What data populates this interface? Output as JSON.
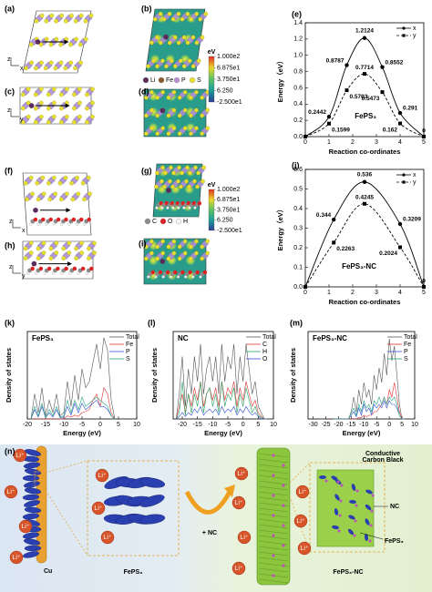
{
  "panel_labels": [
    "(a)",
    "(b)",
    "(c)",
    "(d)",
    "(e)",
    "(f)",
    "(g)",
    "(h)",
    "(i)",
    "(j)",
    "(k)",
    "(l)",
    "(m)",
    "(n)"
  ],
  "structure_axes": [
    [
      "z",
      "x"
    ],
    [
      "z",
      "y"
    ],
    [
      "z",
      "x"
    ],
    [
      "z",
      "y"
    ]
  ],
  "colorbar": {
    "unit": "eV",
    "clim": [
      -25,
      100
    ],
    "colors": [
      "#2a3d8f",
      "#1f9c9c",
      "#5cc06a",
      "#e8d82a",
      "#e03020"
    ],
    "ticks": [
      {
        "value": 100,
        "label": "1.000e2"
      },
      {
        "value": 68.75,
        "label": "6.875e1"
      },
      {
        "value": 37.5,
        "label": "3.750e1"
      },
      {
        "value": 6.25,
        "label": "6.250"
      },
      {
        "value": -25,
        "label": "-2.500e1"
      }
    ]
  },
  "atom_legends": [
    {
      "names": [
        "Li",
        "Fe",
        "P",
        "S"
      ],
      "colors": [
        "#5a2a5a",
        "#8b5a2b",
        "#b98fd1",
        "#e8e030"
      ]
    },
    {
      "names": [
        "C",
        "O",
        "H"
      ],
      "colors": [
        "#8a8a8a",
        "#e02020",
        "#f4f4f4"
      ]
    }
  ],
  "chart_data": [
    {
      "type": "line",
      "smooth": true,
      "annotation": "FePS₃",
      "xlabel": "Reaction co-ordinates",
      "ylabel": "Energy（eV）",
      "x": [
        0,
        1,
        1.75,
        2.5,
        3.25,
        4,
        5
      ],
      "series": [
        {
          "name": "x",
          "color": "#000000",
          "marker": "circle",
          "dash": false,
          "values": [
            0,
            0.2442,
            0.8787,
            1.2124,
            0.8552,
            0.291,
            0
          ],
          "value_labels": [
            null,
            "0.2442",
            "0.8787",
            "1.2124",
            "0.8552",
            "0.291",
            "0"
          ]
        },
        {
          "name": "y",
          "color": "#000000",
          "marker": "square",
          "dash": true,
          "values": [
            0,
            0.1599,
            0.5703,
            0.7714,
            0.5473,
            0.162,
            0
          ],
          "value_labels": [
            null,
            "0.1599",
            "0.5703",
            "0.7714",
            "0.5473",
            "0.162",
            null
          ]
        }
      ],
      "xlim": [
        0,
        5
      ],
      "ylim": [
        0,
        1.4
      ],
      "xticks": [
        0,
        1,
        2,
        3,
        4,
        5
      ],
      "yticks": [
        {
          "value": 0,
          "label": "0.0"
        },
        {
          "value": 0.2,
          "label": "0.2"
        },
        {
          "value": 0.4,
          "label": "0.4"
        },
        {
          "value": 0.6,
          "label": "0.6"
        },
        {
          "value": 0.8,
          "label": "0.8"
        },
        {
          "value": 1,
          "label": "1.0"
        },
        {
          "value": 1.2,
          "label": "1.2"
        },
        {
          "value": 1.4,
          "label": "1.4"
        }
      ],
      "legend": "upper right"
    },
    {
      "type": "line",
      "smooth": true,
      "annotation": "FePS₃-NC",
      "xlabel": "Reaction co-ordinates",
      "ylabel": "Energy（eV）",
      "x": [
        0,
        1.2,
        2.5,
        4,
        5
      ],
      "series": [
        {
          "name": "x",
          "color": "#000000",
          "marker": "circle",
          "dash": false,
          "values": [
            0,
            0.344,
            0.536,
            0.3209,
            0
          ],
          "value_labels": [
            null,
            "0.344",
            "0.536",
            "0.3209",
            "0"
          ]
        },
        {
          "name": "y",
          "color": "#000000",
          "marker": "square",
          "dash": true,
          "values": [
            0,
            0.2263,
            0.4245,
            0.2024,
            0
          ],
          "value_labels": [
            null,
            "0.2263",
            "0.4245",
            "0.2024",
            null
          ]
        }
      ],
      "xlim": [
        0,
        5
      ],
      "ylim": [
        0,
        0.6
      ],
      "xticks": [
        0,
        1,
        2,
        3,
        4,
        5
      ],
      "yticks": [
        {
          "value": 0,
          "label": "0.0"
        },
        {
          "value": 0.1,
          "label": "0.1"
        },
        {
          "value": 0.2,
          "label": "0.2"
        },
        {
          "value": 0.3,
          "label": "0.3"
        },
        {
          "value": 0.4,
          "label": "0.4"
        },
        {
          "value": 0.5,
          "label": "0.5"
        },
        {
          "value": 0.6,
          "label": "0.6"
        }
      ],
      "legend": "upper right"
    },
    {
      "type": "line",
      "annotation": "FePS₃",
      "xlabel": "Energy (eV)",
      "ylabel": "Density of states",
      "x": [
        -19,
        -18,
        -17,
        -16,
        -15,
        -14,
        -13,
        -12,
        -11,
        -10,
        -9,
        -8,
        -7,
        -6,
        -5,
        -4,
        -3,
        -2,
        -1,
        0,
        1,
        2,
        3,
        4
      ],
      "series": [
        {
          "name": "Total",
          "color": "#555555",
          "values": [
            0,
            4,
            1,
            5,
            0.5,
            3,
            1,
            4,
            0.5,
            1,
            6,
            2,
            7,
            3,
            8,
            5,
            6,
            9,
            12,
            8,
            13,
            11,
            3,
            0
          ]
        },
        {
          "name": "Fe",
          "color": "#e03030",
          "values": [
            0,
            0,
            0,
            0,
            0,
            0,
            0,
            0,
            0,
            0,
            0.5,
            0.3,
            0.6,
            0.4,
            1,
            1.2,
            1.5,
            3,
            4,
            2,
            5,
            4,
            1,
            0
          ]
        },
        {
          "name": "P",
          "color": "#3050d0",
          "values": [
            0,
            1.5,
            0.3,
            2,
            0.2,
            1,
            0.3,
            1.5,
            0.2,
            0.3,
            2,
            0.6,
            2.5,
            1,
            2.5,
            1.5,
            2,
            2.5,
            3,
            2,
            2,
            1.5,
            0.5,
            0
          ]
        },
        {
          "name": "S",
          "color": "#20a080",
          "values": [
            0,
            2,
            0.5,
            2.5,
            0.2,
            1.5,
            0.5,
            2,
            0.3,
            0.5,
            3,
            1,
            3,
            1.5,
            3.5,
            2,
            2.5,
            3,
            3.5,
            3,
            2.5,
            2,
            0.5,
            0
          ]
        }
      ],
      "xlim": [
        -20,
        10
      ],
      "ylim": [
        0,
        14
      ],
      "xticks": [
        -20,
        -15,
        -10,
        -5,
        0,
        5,
        10
      ],
      "legend": "upper right"
    },
    {
      "type": "line",
      "annotation": "NC",
      "xlabel": "Energy (eV)",
      "ylabel": "Density of states",
      "x": [
        -22,
        -21,
        -20,
        -19,
        -18,
        -17,
        -16,
        -15,
        -14,
        -13,
        -12,
        -11,
        -10,
        -9,
        -8,
        -7,
        -6,
        -5,
        -4,
        -3,
        -2,
        -1,
        0,
        1,
        2,
        3,
        4,
        5,
        6,
        7,
        8
      ],
      "series": [
        {
          "name": "Total",
          "color": "#555555",
          "values": [
            0,
            2,
            5,
            1,
            4,
            2,
            5,
            3,
            6,
            2,
            4,
            5,
            3,
            5,
            2,
            6,
            3,
            5,
            4,
            6,
            2,
            5,
            3,
            6,
            4,
            2,
            3,
            1,
            0.5,
            0,
            0
          ]
        },
        {
          "name": "C",
          "color": "#e03030",
          "values": [
            0,
            1,
            2,
            0.5,
            2,
            1,
            2.5,
            1.5,
            3,
            1,
            2,
            2.5,
            1.5,
            2.5,
            1,
            3,
            1.5,
            2.5,
            2,
            3,
            1,
            2.5,
            1.5,
            3,
            2,
            1,
            1.5,
            0.5,
            0.2,
            0,
            0
          ]
        },
        {
          "name": "H",
          "color": "#20a060",
          "values": [
            0,
            0.5,
            3,
            0.3,
            2,
            0.5,
            2,
            1,
            3,
            0.5,
            2,
            2.5,
            1,
            2,
            0.5,
            3,
            1,
            2,
            1.5,
            2.5,
            0.5,
            2,
            1,
            2.5,
            1.5,
            0.5,
            1,
            0.3,
            0.1,
            0,
            0
          ]
        },
        {
          "name": "O",
          "color": "#3050d0",
          "values": [
            0,
            0.2,
            0.5,
            0.2,
            0.5,
            0.3,
            0.8,
            0.5,
            1,
            0.3,
            0.6,
            0.8,
            0.5,
            0.8,
            0.3,
            1,
            0.5,
            0.8,
            0.6,
            1,
            0.3,
            0.8,
            0.5,
            1,
            0.6,
            0.3,
            0.5,
            0.2,
            0,
            0,
            0
          ]
        }
      ],
      "xlim": [
        -23,
        10
      ],
      "ylim": [
        0,
        7
      ],
      "xticks": [
        -20,
        -15,
        -10,
        -5,
        0,
        5,
        10
      ],
      "legend": "upper right"
    },
    {
      "type": "line",
      "annotation": "FePS₃-NC",
      "xlabel": "Energy (eV)",
      "ylabel": "Density of states",
      "x": [
        -22,
        -21,
        -20,
        -19,
        -18,
        -17,
        -16,
        -15,
        -14,
        -13,
        -12,
        -11,
        -10,
        -9,
        -8,
        -7,
        -6,
        -5,
        -4,
        -3,
        -2,
        -1,
        0,
        1,
        2,
        3,
        4,
        5,
        6
      ],
      "series": [
        {
          "name": "Total",
          "color": "#555555",
          "values": [
            0,
            0,
            0,
            0,
            0,
            0,
            0,
            1,
            3,
            1,
            4,
            2,
            5,
            3,
            4,
            2,
            6,
            4,
            7,
            5,
            9,
            6,
            11,
            8,
            10,
            6,
            2,
            0,
            0
          ]
        },
        {
          "name": "Fe",
          "color": "#e03030",
          "values": [
            0,
            0,
            0,
            0,
            0,
            0,
            0,
            0,
            0,
            0,
            0.2,
            0.2,
            0.5,
            0.3,
            0.5,
            0.5,
            1,
            1,
            1.5,
            2,
            3,
            2,
            4,
            3,
            5,
            3,
            1,
            0,
            0
          ]
        },
        {
          "name": "P",
          "color": "#3050d0",
          "values": [
            0,
            0,
            0,
            0,
            0,
            0,
            0,
            0.5,
            1,
            0.3,
            1.5,
            0.5,
            2,
            1,
            1.5,
            0.6,
            2,
            1.5,
            2,
            1.5,
            2.5,
            1.5,
            2.5,
            2,
            2,
            1.5,
            0.5,
            0,
            0
          ]
        },
        {
          "name": "S",
          "color": "#20a080",
          "values": [
            0,
            0,
            0,
            0,
            0,
            0,
            0,
            0.8,
            1.5,
            0.5,
            2,
            1,
            2.5,
            1.5,
            2,
            1,
            2.5,
            2,
            3,
            2,
            3,
            2,
            3,
            2.5,
            3,
            2,
            0.5,
            0,
            0
          ]
        }
      ],
      "xlim": [
        -32,
        10
      ],
      "ylim": [
        0,
        12
      ],
      "xticks": [
        -30,
        -25,
        -20,
        -15,
        -10,
        -5,
        0,
        5,
        10
      ],
      "legend": "upper right"
    }
  ],
  "schematic": {
    "li_ion": "Li⁺",
    "cu": "Cu",
    "left_label": "FePS₃",
    "plus": "+ NC",
    "carbon_black": [
      "Conductive",
      "Carbon Black"
    ],
    "nc": "NC",
    "fe_label": "FePS₃",
    "right_label": "FePS₃-NC"
  }
}
